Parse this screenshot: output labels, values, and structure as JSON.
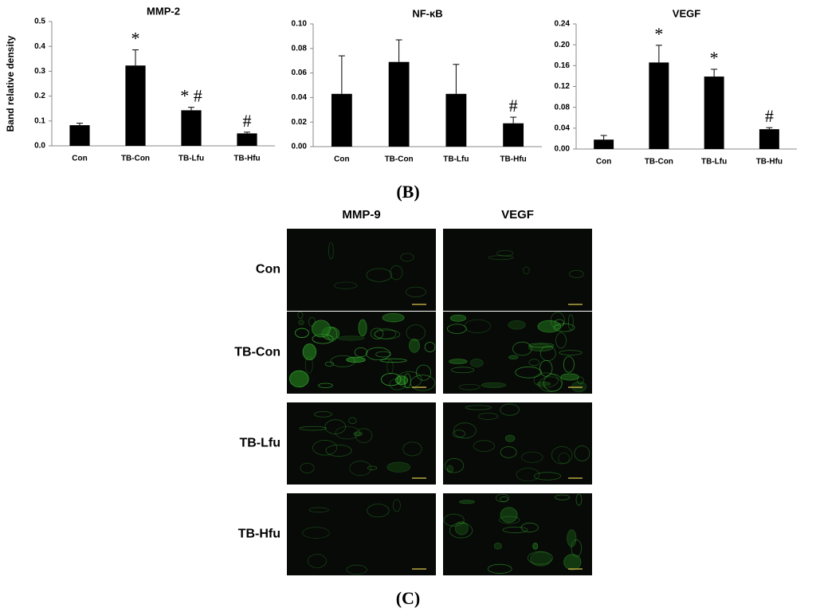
{
  "chart_data": [
    {
      "type": "bar",
      "title": "MMP-2",
      "y_label": "Band relative density",
      "categories": [
        "Con",
        "TB-Con",
        "TB-Lfu",
        "TB-Hfu"
      ],
      "values": [
        0.083,
        0.323,
        0.143,
        0.05
      ],
      "errors": [
        0.008,
        0.063,
        0.012,
        0.005
      ],
      "annotations": [
        null,
        "*",
        "* #",
        "#"
      ],
      "color": "#000000",
      "ylim": [
        0,
        0.5
      ],
      "yticks": [
        {
          "value": 0,
          "label": "0.0"
        },
        0.1,
        0.2,
        0.3,
        0.4,
        0.5
      ]
    },
    {
      "type": "bar",
      "title": "NF-κB",
      "categories": [
        "Con",
        "TB-Con",
        "TB-Lfu",
        "TB-Hfu"
      ],
      "values": [
        0.043,
        0.069,
        0.043,
        0.019
      ],
      "errors": [
        0.031,
        0.018,
        0.024,
        0.005
      ],
      "annotations": [
        null,
        null,
        null,
        "#"
      ],
      "color": "#000000",
      "ylim": [
        0,
        0.1
      ],
      "yticks": [
        {
          "value": 0,
          "label": "0.00"
        },
        0.02,
        0.04,
        0.06,
        0.08,
        {
          "value": 0.1,
          "label": "0.10"
        }
      ]
    },
    {
      "type": "bar",
      "title": "VEGF",
      "categories": [
        "Con",
        "TB-Con",
        "TB-Lfu",
        "TB-Hfu"
      ],
      "values": [
        0.018,
        0.166,
        0.139,
        0.038
      ],
      "errors": [
        0.008,
        0.033,
        0.014,
        0.003
      ],
      "annotations": [
        null,
        "*",
        "*",
        "#"
      ],
      "color": "#000000",
      "ylim": [
        0,
        0.24
      ],
      "yticks": [
        {
          "value": 0,
          "label": "0.00"
        },
        0.04,
        0.08,
        0.12,
        0.16,
        {
          "value": 0.2,
          "label": "0.20"
        },
        0.24
      ]
    }
  ],
  "panel_labels": [
    "(B)",
    "(C)"
  ],
  "micrographs": {
    "columns": [
      "MMP-9",
      "VEGF"
    ],
    "rows": [
      "Con",
      "TB-Con",
      "TB-Lfu",
      "TB-Hfu"
    ]
  }
}
